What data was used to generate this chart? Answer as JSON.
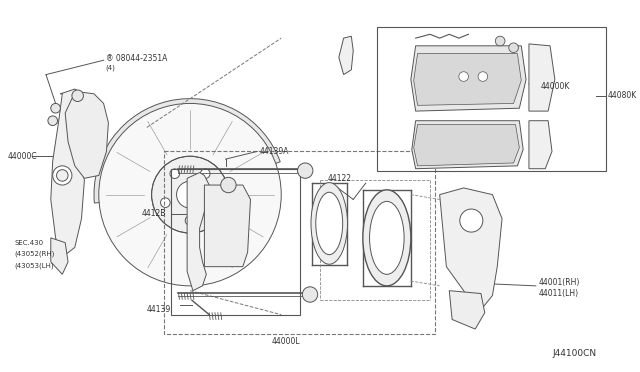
{
  "background_color": "#f5f5f5",
  "line_color": "#555555",
  "text_color": "#333333",
  "diagram_number": "J44100CN",
  "figsize": [
    6.4,
    3.72
  ],
  "dpi": 100,
  "parts": {
    "bolt_ref": {
      "label": "Ⓑ 08044-2351A",
      "sub": "(4)"
    },
    "p44000C": "44000C",
    "sec430": "SEC.430",
    "p43052": "(43052(RH)",
    "p43053": "(43053(LH)",
    "p44139A": "44139A",
    "p4412B": "4412B",
    "p44122": "44122",
    "p44139": "44139",
    "p44000L": "44000L",
    "p44000K": "44000K",
    "p44080K": "44080K",
    "p44001rh": "44001(RH)",
    "p44011lh": "44011(LH)"
  }
}
